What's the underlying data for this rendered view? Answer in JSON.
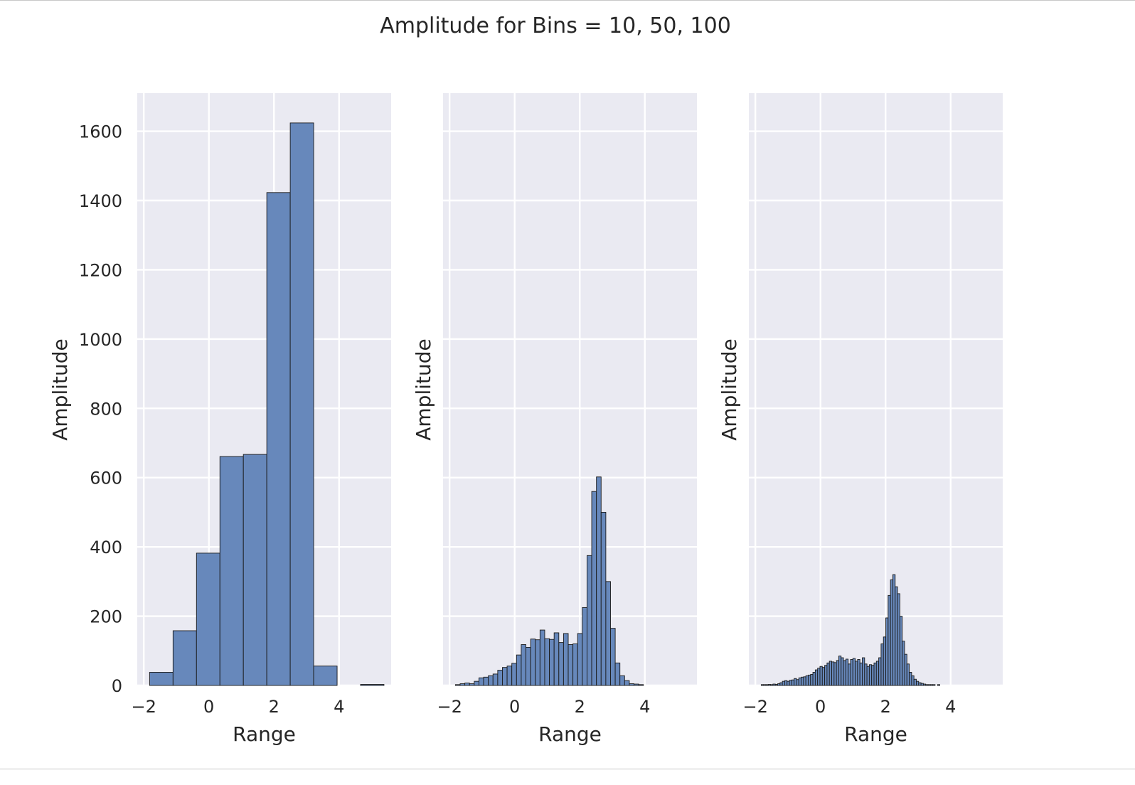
{
  "title": "Amplitude for Bins  = 10, 50, 100",
  "chart_data": [
    {
      "type": "bar",
      "title": "",
      "xlabel": "Range",
      "ylabel": "Amplitude",
      "xlim": [
        -2.2,
        5.6
      ],
      "ylim": [
        0,
        1710
      ],
      "xticks": [
        -2,
        0,
        2,
        4
      ],
      "xtick_labels": [
        "−2",
        "0",
        "2",
        "4"
      ],
      "yticks": [
        0,
        200,
        400,
        600,
        800,
        1000,
        1200,
        1400,
        1600
      ],
      "ytick_labels": [
        "0",
        "200",
        "400",
        "600",
        "800",
        "1000",
        "1200",
        "1400",
        "1600"
      ],
      "grid": true,
      "bins": 10,
      "x_start": -1.82,
      "bin_width": 0.72,
      "values": [
        38,
        158,
        382,
        661,
        667,
        1423,
        1624,
        56,
        0,
        3
      ]
    },
    {
      "type": "bar",
      "title": "",
      "xlabel": "Range",
      "ylabel": "Amplitude",
      "xlim": [
        -2.2,
        5.6
      ],
      "ylim": [
        0,
        1710
      ],
      "xticks": [
        -2,
        0,
        2,
        4
      ],
      "xtick_labels": [
        "−2",
        "0",
        "2",
        "4"
      ],
      "grid": true,
      "bins": 50,
      "x_start": -1.82,
      "bin_width": 0.1444,
      "values": [
        2,
        5,
        7,
        5,
        12,
        22,
        24,
        28,
        33,
        44,
        52,
        56,
        64,
        88,
        118,
        110,
        134,
        132,
        160,
        135,
        133,
        152,
        124,
        150,
        118,
        120,
        150,
        225,
        375,
        560,
        602,
        500,
        300,
        165,
        65,
        28,
        14,
        5,
        4,
        2,
        0,
        0,
        0,
        0,
        0,
        0,
        0,
        0,
        0,
        0
      ]
    },
    {
      "type": "bar",
      "title": "",
      "xlabel": "Range",
      "ylabel": "Amplitude",
      "xlim": [
        -2.2,
        5.6
      ],
      "ylim": [
        0,
        1710
      ],
      "xticks": [
        -2,
        0,
        2,
        4
      ],
      "xtick_labels": [
        "−2",
        "0",
        "2",
        "4"
      ],
      "grid": true,
      "bins": 100,
      "x_start": -1.82,
      "bin_width": 0.0722,
      "values": [
        1,
        2,
        2,
        3,
        2,
        4,
        3,
        5,
        8,
        12,
        14,
        12,
        15,
        16,
        20,
        17,
        22,
        24,
        25,
        28,
        30,
        32,
        38,
        45,
        50,
        55,
        52,
        58,
        65,
        70,
        68,
        66,
        72,
        85,
        80,
        72,
        76,
        62,
        75,
        78,
        70,
        75,
        65,
        80,
        62,
        55,
        60,
        58,
        65,
        70,
        80,
        120,
        140,
        195,
        260,
        305,
        320,
        285,
        265,
        200,
        128,
        90,
        62,
        38,
        28,
        18,
        12,
        8,
        6,
        4,
        2,
        2,
        1,
        1,
        0,
        2,
        0,
        0,
        0,
        0,
        0,
        0,
        0,
        0,
        0,
        0,
        0,
        0,
        0,
        0,
        0,
        0,
        0,
        0,
        0,
        0,
        0,
        0,
        0,
        0
      ]
    }
  ]
}
